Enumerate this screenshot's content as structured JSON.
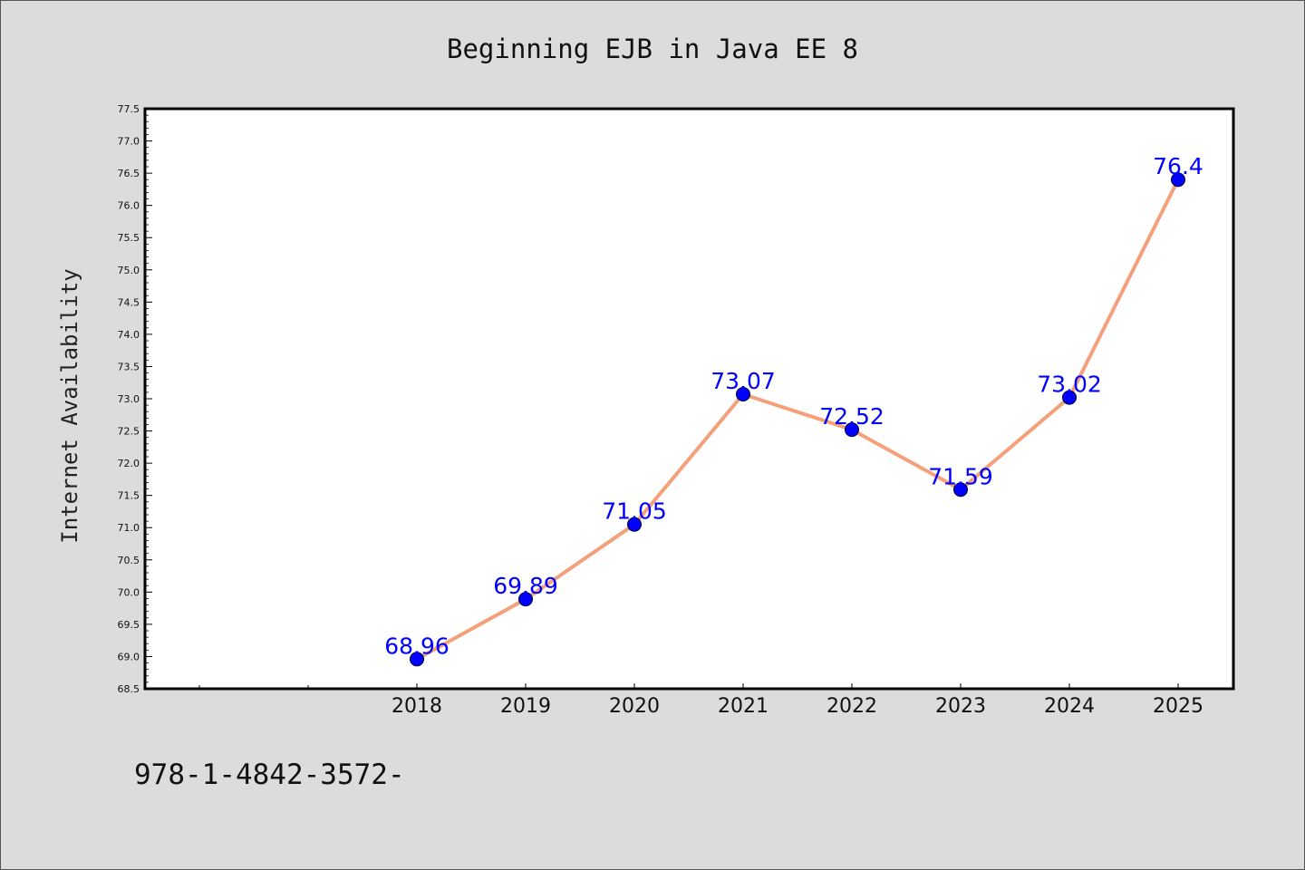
{
  "chart_data": {
    "type": "line",
    "title": "Beginning EJB in Java EE 8",
    "xlabel": "",
    "ylabel": "Internet Availability",
    "categories": [
      "2018",
      "2019",
      "2020",
      "2021",
      "2022",
      "2023",
      "2024",
      "2025"
    ],
    "series": [
      {
        "values": [
          68.96,
          69.89,
          71.05,
          73.07,
          72.52,
          71.59,
          73.02,
          76.4
        ],
        "data_labels": [
          "68.96",
          "69.89",
          "71.05",
          "73.07",
          "72.52",
          "71.59",
          "73.02",
          "76.4"
        ],
        "line_color": "#f4a07a",
        "marker_color": "#0000ff",
        "label_color": "#0000ff"
      }
    ],
    "ylim": [
      68.5,
      77.5
    ],
    "yticks": [
      "68.5",
      "69.0",
      "69.5",
      "70.0",
      "70.5",
      "71.0",
      "71.5",
      "72.0",
      "72.5",
      "73.0",
      "73.5",
      "74.0",
      "74.5",
      "75.0",
      "75.5",
      "76.0",
      "76.5",
      "77.0",
      "77.5"
    ],
    "grid": false,
    "legend": "none",
    "background": "#dcdcdc",
    "plot_background": "#ffffff"
  },
  "footer": {
    "text": "978-1-4842-3572-"
  }
}
